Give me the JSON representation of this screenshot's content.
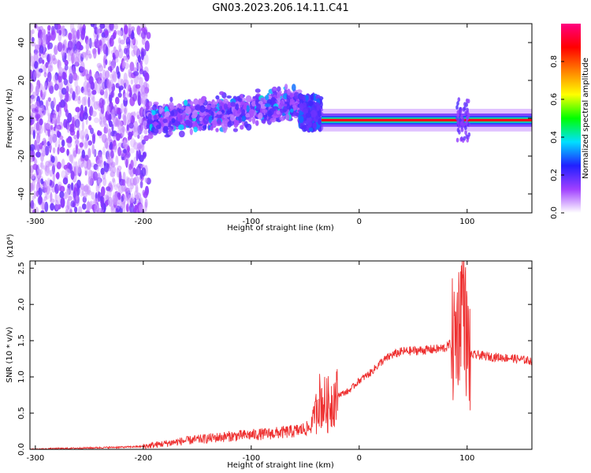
{
  "title": "GN03.2023.206.14.11.C41",
  "chart_data": [
    {
      "type": "heatmap",
      "xlabel": "Height of straight line (km)",
      "ylabel": "Frequency (Hz)",
      "xlim": [
        -305,
        160
      ],
      "ylim": [
        -50,
        50
      ],
      "xticks": [
        -300,
        -200,
        -100,
        0,
        100
      ],
      "yticks": [
        -40,
        -20,
        0,
        20,
        40
      ],
      "colorbar": {
        "label": "Normalized spectral amplitude",
        "range": [
          0.0,
          1.0
        ],
        "ticks": [
          0.0,
          0.2,
          0.4,
          0.6,
          0.8
        ],
        "colormap": [
          "#ffffff",
          "#a040ff",
          "#2020ff",
          "#00e0ff",
          "#00ff00",
          "#ffff00",
          "#ff8000",
          "#ff0000",
          "#ff0080"
        ]
      },
      "regions": [
        {
          "x_range": [
            -305,
            -195
          ],
          "pattern": "broadband scattered noise",
          "freq_range": [
            -50,
            50
          ],
          "amplitude": 0.15
        },
        {
          "x_range": [
            -195,
            -55
          ],
          "pattern": "band rising from ~-2 Hz to ~8 Hz",
          "half_width_hz": 8,
          "amplitude": 0.3
        },
        {
          "x_range": [
            -55,
            -35
          ],
          "pattern": "disturbed band",
          "center_hz": 3,
          "amplitude": 0.3
        },
        {
          "x_range": [
            -35,
            160
          ],
          "pattern": "narrow line near ~-1 Hz",
          "amplitude": 0.9
        }
      ]
    },
    {
      "type": "line",
      "xlabel": "Height of straight line (km)",
      "ylabel": "SNR (10 * v/v)",
      "y_scale_label": "(x10⁴)",
      "xlim": [
        -305,
        160
      ],
      "ylim": [
        0,
        2.6
      ],
      "xticks": [
        -300,
        -200,
        -100,
        0,
        100
      ],
      "yticks": [
        0.0,
        0.5,
        1.0,
        1.5,
        2.0,
        2.5
      ],
      "color": "#ee3030",
      "x": [
        -305,
        -280,
        -250,
        -220,
        -200,
        -180,
        -160,
        -140,
        -120,
        -100,
        -80,
        -60,
        -45,
        -38,
        -30,
        -20,
        -10,
        0,
        10,
        20,
        30,
        40,
        50,
        60,
        70,
        80,
        88,
        93,
        96,
        100,
        103,
        110,
        120,
        140,
        160
      ],
      "y": [
        0.0,
        0.01,
        0.02,
        0.03,
        0.04,
        0.08,
        0.12,
        0.15,
        0.18,
        0.2,
        0.22,
        0.25,
        0.3,
        0.7,
        0.6,
        0.75,
        0.8,
        0.95,
        1.05,
        1.2,
        1.3,
        1.35,
        1.36,
        1.37,
        1.38,
        1.4,
        1.5,
        1.8,
        2.3,
        1.4,
        1.3,
        1.3,
        1.28,
        1.26,
        1.22
      ],
      "noise_band": [
        {
          "x_range": [
            -40,
            -20
          ],
          "amplitude": 0.4
        },
        {
          "x_range": [
            85,
            103
          ],
          "amplitude": 0.9
        }
      ]
    }
  ]
}
